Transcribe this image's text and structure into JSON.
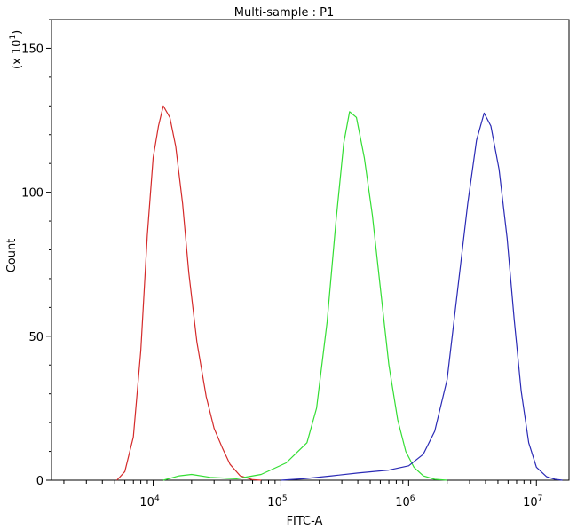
{
  "chart_data": {
    "type": "line",
    "title": "Multi-sample : P1",
    "xlabel": "FITC-A",
    "ylabel": "Count",
    "y_multiplier_label": "(x 10",
    "y_multiplier_exp": "1",
    "y_multiplier_close": ")",
    "x_scale": "log",
    "xlim": [
      1600,
      18000000
    ],
    "ylim": [
      0,
      16
    ],
    "y_ticks": [
      {
        "value": 0,
        "label": "0"
      },
      {
        "value": 5,
        "label": "50"
      },
      {
        "value": 10,
        "label": "100"
      },
      {
        "value": 15,
        "label": "150"
      }
    ],
    "x_ticks": [
      {
        "value": 10000,
        "base": "10",
        "exp": "4"
      },
      {
        "value": 100000,
        "base": "10",
        "exp": "5"
      },
      {
        "value": 1000000,
        "base": "10",
        "exp": "6"
      },
      {
        "value": 10000000,
        "base": "10",
        "exp": "7"
      }
    ],
    "grid": false,
    "series": [
      {
        "color": "#d42a2a",
        "points": [
          [
            5200,
            0
          ],
          [
            6000,
            0.3
          ],
          [
            7000,
            1.5
          ],
          [
            8000,
            4.5
          ],
          [
            9000,
            8.5
          ],
          [
            10000,
            11.2
          ],
          [
            11000,
            12.3
          ],
          [
            12000,
            13.0
          ],
          [
            13500,
            12.6
          ],
          [
            15000,
            11.6
          ],
          [
            17000,
            9.6
          ],
          [
            19000,
            7.2
          ],
          [
            22000,
            4.8
          ],
          [
            26000,
            2.9
          ],
          [
            30000,
            1.8
          ],
          [
            35000,
            1.1
          ],
          [
            40000,
            0.55
          ],
          [
            48000,
            0.15
          ],
          [
            60000,
            0.02
          ],
          [
            70000,
            0
          ]
        ]
      },
      {
        "color": "#33dd33",
        "points": [
          [
            12000,
            0
          ],
          [
            16000,
            0.15
          ],
          [
            20000,
            0.2
          ],
          [
            28000,
            0.1
          ],
          [
            45000,
            0.05
          ],
          [
            70000,
            0.2
          ],
          [
            110000,
            0.6
          ],
          [
            160000,
            1.3
          ],
          [
            190000,
            2.5
          ],
          [
            230000,
            5.5
          ],
          [
            270000,
            9.0
          ],
          [
            310000,
            11.7
          ],
          [
            345000,
            12.8
          ],
          [
            390000,
            12.6
          ],
          [
            450000,
            11.2
          ],
          [
            520000,
            9.2
          ],
          [
            600000,
            6.7
          ],
          [
            700000,
            4.0
          ],
          [
            820000,
            2.1
          ],
          [
            950000,
            1.0
          ],
          [
            1100000,
            0.45
          ],
          [
            1300000,
            0.15
          ],
          [
            1600000,
            0.03
          ],
          [
            2000000,
            0
          ]
        ]
      },
      {
        "color": "#2a2ab5",
        "points": [
          [
            100000,
            0
          ],
          [
            150000,
            0.05
          ],
          [
            250000,
            0.15
          ],
          [
            400000,
            0.25
          ],
          [
            700000,
            0.35
          ],
          [
            1000000,
            0.5
          ],
          [
            1300000,
            0.9
          ],
          [
            1600000,
            1.7
          ],
          [
            2000000,
            3.5
          ],
          [
            2400000,
            6.5
          ],
          [
            2900000,
            9.6
          ],
          [
            3400000,
            11.8
          ],
          [
            3900000,
            12.75
          ],
          [
            4400000,
            12.3
          ],
          [
            5100000,
            10.8
          ],
          [
            5900000,
            8.4
          ],
          [
            6700000,
            5.6
          ],
          [
            7600000,
            3.1
          ],
          [
            8700000,
            1.3
          ],
          [
            10000000,
            0.45
          ],
          [
            12000000,
            0.12
          ],
          [
            14000000,
            0.03
          ],
          [
            16000000,
            0
          ]
        ]
      }
    ]
  }
}
